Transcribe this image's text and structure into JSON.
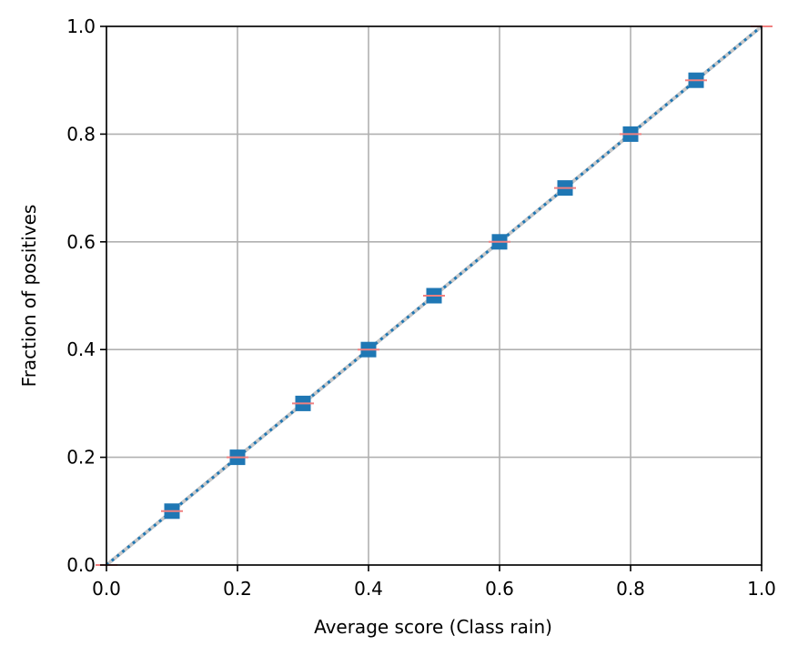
{
  "chart_data": {
    "type": "line",
    "xlabel": "Average score (Class rain)",
    "ylabel": "Fraction of positives",
    "xlim": [
      0.0,
      1.0
    ],
    "ylim": [
      0.0,
      1.0
    ],
    "grid": true,
    "x_ticks": [
      "0.0",
      "0.2",
      "0.4",
      "0.6",
      "0.8",
      "1.0"
    ],
    "y_ticks": [
      "0.0",
      "0.2",
      "0.4",
      "0.6",
      "0.8",
      "1.0"
    ],
    "series": [
      {
        "style": "squares with dotted line",
        "color": "#1f77b4",
        "points": [
          {
            "x": 0.1,
            "y": 0.1
          },
          {
            "x": 0.2,
            "y": 0.2
          },
          {
            "x": 0.3,
            "y": 0.3
          },
          {
            "x": 0.4,
            "y": 0.4
          },
          {
            "x": 0.5,
            "y": 0.5
          },
          {
            "x": 0.6,
            "y": 0.6
          },
          {
            "x": 0.7,
            "y": 0.7
          },
          {
            "x": 0.8,
            "y": 0.8
          },
          {
            "x": 0.9,
            "y": 0.9
          }
        ]
      },
      {
        "style": "perfect calibration diagonal",
        "color": "#c8c8c8",
        "points": [
          {
            "x": 0.0,
            "y": 0.0
          },
          {
            "x": 1.0,
            "y": 1.0
          }
        ]
      },
      {
        "style": "short horizontal ticks",
        "color": "#f08080",
        "points": [
          {
            "x": 0.0,
            "y": 0.0
          },
          {
            "x": 0.1,
            "y": 0.1
          },
          {
            "x": 0.2,
            "y": 0.2
          },
          {
            "x": 0.3,
            "y": 0.3
          },
          {
            "x": 0.4,
            "y": 0.4
          },
          {
            "x": 0.5,
            "y": 0.5
          },
          {
            "x": 0.6,
            "y": 0.6
          },
          {
            "x": 0.7,
            "y": 0.7
          },
          {
            "x": 0.8,
            "y": 0.8
          },
          {
            "x": 0.9,
            "y": 0.9
          },
          {
            "x": 1.0,
            "y": 1.0
          }
        ]
      }
    ]
  }
}
